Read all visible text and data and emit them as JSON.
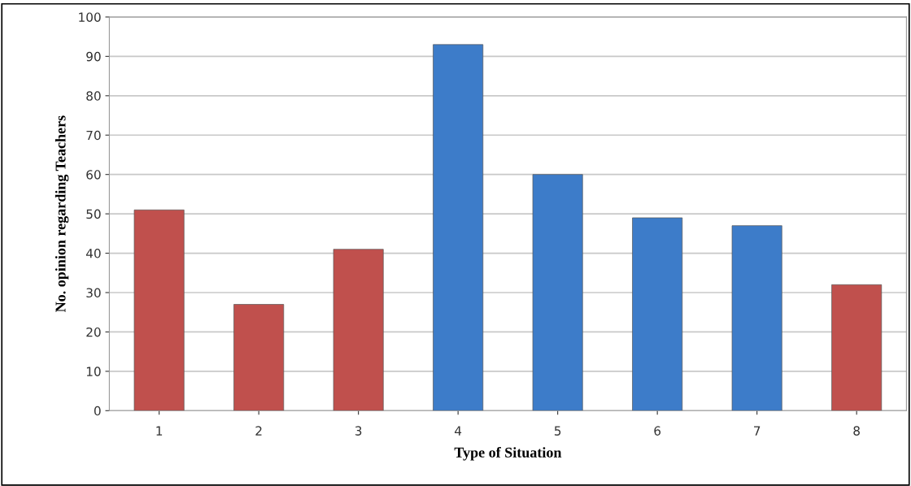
{
  "chart_data": {
    "type": "bar",
    "xlabel": "Type of Situation",
    "ylabel": "No. opinion regarding Teachers",
    "categories": [
      "1",
      "2",
      "3",
      "4",
      "5",
      "6",
      "7",
      "8"
    ],
    "values": [
      51,
      27,
      41,
      93,
      60,
      49,
      47,
      32
    ],
    "colors": [
      "#c0504d",
      "#c0504d",
      "#c0504d",
      "#3d7cc9",
      "#3d7cc9",
      "#3d7cc9",
      "#3d7cc9",
      "#c0504d"
    ],
    "ylim": [
      0,
      100
    ],
    "yticks": [
      0,
      10,
      20,
      30,
      40,
      50,
      60,
      70,
      80,
      90,
      100
    ],
    "grid": "y"
  }
}
